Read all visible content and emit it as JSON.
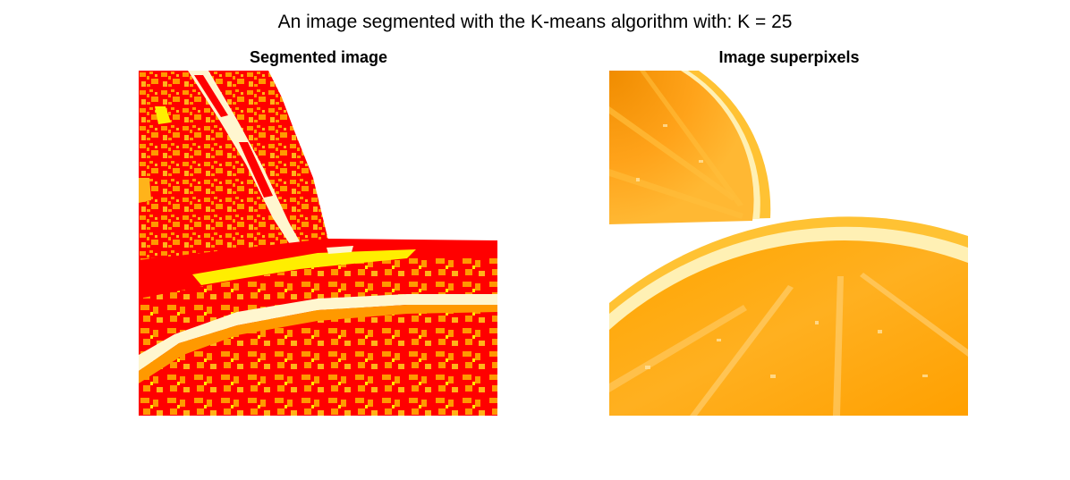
{
  "figure": {
    "title": "An image segmented with the K-means algorithm with: K = 25"
  },
  "panels": [
    {
      "title": "Segmented image",
      "content": "segmented-orange-image",
      "palette": {
        "red": "#ff0000",
        "orange": "#ff9900",
        "light_orange": "#ffb31a",
        "yellow": "#ffee00",
        "cream": "#fff6cf",
        "white": "#ffffff"
      }
    },
    {
      "title": "Image superpixels",
      "content": "orange-slice-photo",
      "palette": {
        "orange": "#ffa500",
        "deep_orange": "#f08c00",
        "light_orange": "#ffbe3c",
        "pith": "#fff0b4",
        "rind": "#ffc233",
        "white": "#ffffff"
      }
    }
  ]
}
